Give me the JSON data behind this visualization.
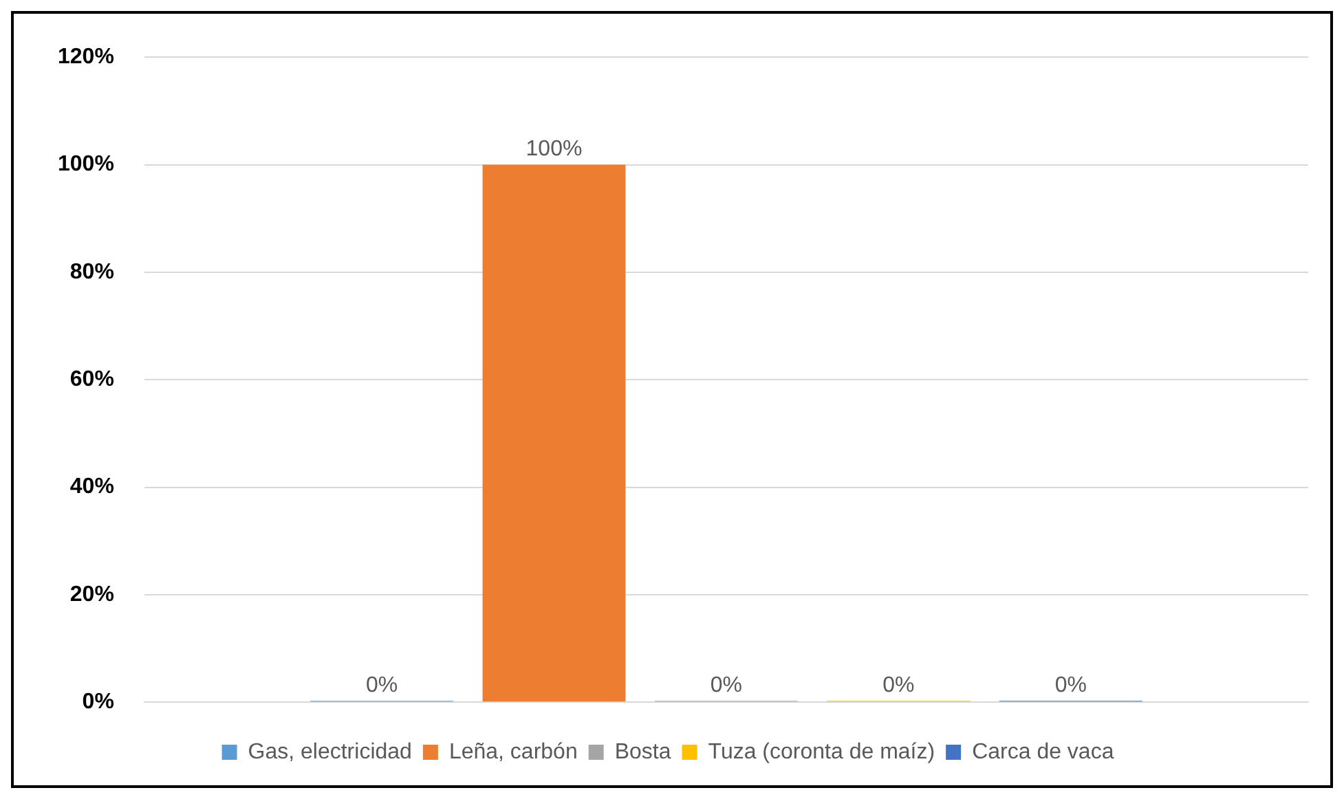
{
  "chart_data": {
    "type": "bar",
    "categories": [
      null
    ],
    "series": [
      {
        "name": "Gas, electricidad",
        "color": "#5b9bd5",
        "values": [
          0
        ],
        "value_labels": [
          "0%"
        ]
      },
      {
        "name": "Leña, carbón",
        "color": "#ed7d31",
        "values": [
          100
        ],
        "value_labels": [
          "100%"
        ]
      },
      {
        "name": "Bosta",
        "color": "#a5a5a5",
        "values": [
          0
        ],
        "value_labels": [
          "0%"
        ]
      },
      {
        "name": "Tuza (coronta de maíz)",
        "color": "#ffc000",
        "values": [
          0
        ],
        "value_labels": [
          "0%"
        ]
      },
      {
        "name": "Carca de vaca",
        "color": "#4472c4",
        "values": [
          0
        ],
        "value_labels": [
          "0%"
        ]
      }
    ],
    "ylim": [
      0,
      120
    ],
    "yticks": [
      {
        "value": 0,
        "label": "0%"
      },
      {
        "value": 20,
        "label": "20%"
      },
      {
        "value": 40,
        "label": "40%"
      },
      {
        "value": 60,
        "label": "60%"
      },
      {
        "value": 80,
        "label": "80%"
      },
      {
        "value": 100,
        "label": "100%"
      },
      {
        "value": 120,
        "label": "120%"
      }
    ],
    "grid": "y",
    "legend": "bottom"
  }
}
